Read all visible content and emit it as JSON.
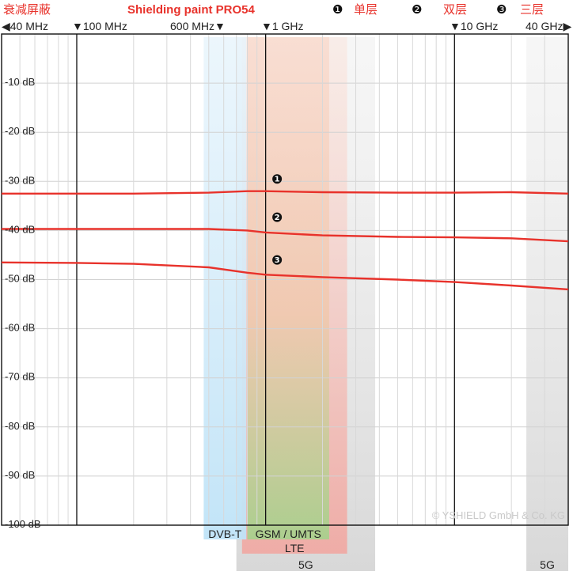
{
  "header": {
    "left_label": "衰减屏蔽",
    "title": "Shielding paint PRO54",
    "legend": [
      {
        "marker": "❶",
        "label": "单层"
      },
      {
        "marker": "❷",
        "label": "双层"
      },
      {
        "marker": "❸",
        "label": "三层"
      }
    ]
  },
  "x_ticks": [
    {
      "label": "◀40 MHz",
      "value_mhz": 40
    },
    {
      "label": "▼100 MHz",
      "value_mhz": 100
    },
    {
      "label": "600 MHz▼",
      "value_mhz": 600
    },
    {
      "label": "▼1 GHz",
      "value_mhz": 1000
    },
    {
      "label": "▼10 GHz",
      "value_mhz": 10000
    },
    {
      "label": "40 GHz▶",
      "value_mhz": 40000
    }
  ],
  "copyright": "© YSHIELD GmbH & Co. KG",
  "colors": {
    "accent": "#e8322b",
    "dvbt": "#bfe3f7",
    "gsm_top": "#f5c6b3",
    "gsm_bottom": "#a8d08d",
    "lte": "#f1a7a1",
    "fiveg": "#dcdcdc"
  },
  "chart_data": {
    "type": "line",
    "xscale": "log",
    "xlim_mhz": [
      40,
      40000
    ],
    "ylim": [
      -100,
      0
    ],
    "y_ticks": [
      {
        "value": -10,
        "label": "-10 dB"
      },
      {
        "value": -20,
        "label": "-20 dB"
      },
      {
        "value": -30,
        "label": "-30 dB"
      },
      {
        "value": -40,
        "label": "-40 dB"
      },
      {
        "value": -50,
        "label": "-50 dB"
      },
      {
        "value": -60,
        "label": "-60 dB"
      },
      {
        "value": -70,
        "label": "-70 dB"
      },
      {
        "value": -80,
        "label": "-80 dB"
      },
      {
        "value": -90,
        "label": "-90 dB"
      },
      {
        "value": -100,
        "label": "-100 dB"
      }
    ],
    "grid": true,
    "bands": [
      {
        "label": "DVB-T",
        "from_mhz": 470,
        "to_mhz": 790
      },
      {
        "label": "GSM / UMTS",
        "from_mhz": 800,
        "to_mhz": 2170
      },
      {
        "label": "LTE",
        "from_mhz": 750,
        "to_mhz": 2700
      },
      {
        "label": "5G",
        "from_mhz": 700,
        "to_mhz": 3800
      },
      {
        "label": "5G",
        "from_mhz": 24000,
        "to_mhz": 40000
      }
    ],
    "series": [
      {
        "name": "❶",
        "x_mhz": [
          40,
          100,
          200,
          500,
          800,
          1000,
          2000,
          5000,
          10000,
          20000,
          40000
        ],
        "values": [
          -32.5,
          -32.5,
          -32.5,
          -32.3,
          -32.0,
          -32.0,
          -32.2,
          -32.3,
          -32.3,
          -32.2,
          -32.5
        ]
      },
      {
        "name": "❷",
        "x_mhz": [
          40,
          100,
          200,
          500,
          800,
          1000,
          2000,
          5000,
          10000,
          20000,
          40000
        ],
        "values": [
          -39.7,
          -39.7,
          -39.7,
          -39.7,
          -40.0,
          -40.4,
          -41.0,
          -41.3,
          -41.4,
          -41.6,
          -42.2
        ]
      },
      {
        "name": "❸",
        "x_mhz": [
          40,
          100,
          200,
          500,
          800,
          1000,
          2000,
          5000,
          10000,
          20000,
          40000
        ],
        "values": [
          -46.5,
          -46.6,
          -46.8,
          -47.5,
          -48.6,
          -49.0,
          -49.5,
          -50.0,
          -50.5,
          -51.2,
          -52.0
        ]
      }
    ],
    "markers": [
      {
        "label": "❶",
        "x_mhz": 1150,
        "value": -29.5
      },
      {
        "label": "❷",
        "x_mhz": 1150,
        "value": -37.3
      },
      {
        "label": "❸",
        "x_mhz": 1150,
        "value": -46.0
      }
    ]
  }
}
